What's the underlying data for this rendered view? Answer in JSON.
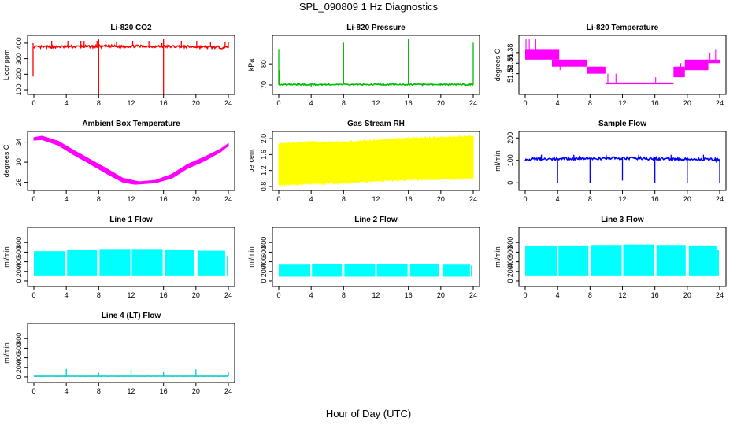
{
  "figure": {
    "title": "SPL_090809  1 Hz Diagnostics",
    "xlabel": "Hour of Day (UTC)"
  },
  "chart_data": [
    {
      "type": "line",
      "title": "Li-820 CO2",
      "ylabel": "Licor ppm",
      "color": "#ff0000",
      "xlim": [
        0,
        24
      ],
      "ylim": [
        90,
        430
      ],
      "xticks": [
        0,
        4,
        8,
        12,
        16,
        20,
        24
      ],
      "yticks": [
        100,
        200,
        300,
        400
      ],
      "baseline": [
        [
          0,
          375
        ],
        [
          6,
          378
        ],
        [
          12,
          380
        ],
        [
          18,
          378
        ],
        [
          24,
          372
        ]
      ],
      "noise": 8,
      "spikes": [
        [
          -0.1,
          185
        ],
        [
          -0.1,
          400
        ],
        [
          2.2,
          415
        ],
        [
          4.2,
          415
        ],
        [
          5.8,
          415
        ],
        [
          6.2,
          415
        ],
        [
          7.8,
          415
        ],
        [
          8,
          55
        ],
        [
          8,
          430
        ],
        [
          10.2,
          410
        ],
        [
          12.2,
          415
        ],
        [
          14.2,
          415
        ],
        [
          15.8,
          400
        ],
        [
          16,
          55
        ],
        [
          16,
          425
        ],
        [
          18.2,
          415
        ],
        [
          20.1,
          415
        ],
        [
          21.8,
          410
        ],
        [
          23.6,
          410
        ],
        [
          24,
          410
        ]
      ]
    },
    {
      "type": "line",
      "title": "Li-820 Pressure",
      "ylabel": "kPa",
      "color": "#00bb00",
      "xlim": [
        0,
        24
      ],
      "ylim": [
        67,
        92
      ],
      "xticks": [
        0,
        4,
        8,
        12,
        16,
        20,
        24
      ],
      "yticks": [
        70,
        80
      ],
      "baseline": [
        [
          0,
          70.2
        ],
        [
          24,
          70.2
        ]
      ],
      "noise": 0.3,
      "spikes": [
        [
          0,
          87
        ],
        [
          0.1,
          77
        ],
        [
          4,
          69
        ],
        [
          8,
          90
        ],
        [
          16,
          92
        ],
        [
          20,
          71
        ],
        [
          24,
          90
        ]
      ]
    },
    {
      "type": "step-band",
      "title": "Li-820 Temperature",
      "ylabel": "degrees C",
      "color": "#ff00ff",
      "xlim": [
        0,
        24
      ],
      "ylim": [
        51.27,
        51.42
      ],
      "xticks": [
        0,
        4,
        8,
        12,
        16,
        20,
        24
      ],
      "yticks": [
        51.32,
        51.35,
        51.38
      ],
      "ytick_labels": [
        "51.32",
        "51.35",
        "51.38"
      ],
      "bands": [
        [
          0,
          4.2,
          51.36,
          51.39
        ],
        [
          3.3,
          7.6,
          51.34,
          51.36
        ],
        [
          7.6,
          9.9,
          51.32,
          51.34
        ],
        [
          9.9,
          18.3,
          51.29,
          51.295
        ],
        [
          18.3,
          19.7,
          51.31,
          51.34
        ],
        [
          19.7,
          22.6,
          51.33,
          51.36
        ],
        [
          22.6,
          24,
          51.35,
          51.36
        ]
      ],
      "spikes": [
        [
          0.1,
          51.42
        ],
        [
          0.5,
          51.42
        ],
        [
          1.3,
          51.42
        ],
        [
          4.3,
          51.33
        ],
        [
          10.2,
          51.32
        ],
        [
          11.2,
          51.32
        ],
        [
          16.1,
          51.31
        ],
        [
          19.2,
          51.35
        ],
        [
          22.8,
          51.38
        ],
        [
          23.5,
          51.39
        ]
      ]
    },
    {
      "type": "band-line",
      "title": "Ambient Box Temperature",
      "ylabel": "degrees C",
      "color": "#ff00ff",
      "xlim": [
        0,
        24
      ],
      "ylim": [
        25,
        35.5
      ],
      "xticks": [
        0,
        4,
        8,
        12,
        16,
        20,
        24
      ],
      "yticks": [
        26,
        30,
        34
      ],
      "upper": [
        [
          0,
          34.9
        ],
        [
          1,
          35.2
        ],
        [
          3,
          34.2
        ],
        [
          5,
          32.3
        ],
        [
          7,
          30.5
        ],
        [
          9,
          28.7
        ],
        [
          11,
          26.8
        ],
        [
          13,
          26.1
        ],
        [
          15,
          26.4
        ],
        [
          17,
          27.6
        ],
        [
          19,
          29.6
        ],
        [
          21,
          31.0
        ],
        [
          23,
          32.6
        ],
        [
          24,
          33.7
        ]
      ],
      "lower": [
        [
          0,
          34.4
        ],
        [
          1,
          34.5
        ],
        [
          3,
          33.4
        ],
        [
          5,
          31.4
        ],
        [
          7,
          29.6
        ],
        [
          9,
          27.7
        ],
        [
          11,
          26.0
        ],
        [
          12.5,
          25.6
        ],
        [
          15,
          25.9
        ],
        [
          17,
          26.8
        ],
        [
          19,
          28.8
        ],
        [
          21,
          30.2
        ],
        [
          23,
          32.0
        ],
        [
          24,
          33.3
        ]
      ]
    },
    {
      "type": "band",
      "title": "Gas Stream RH",
      "ylabel": "percent",
      "color": "#ffff00",
      "xlim": [
        0,
        24
      ],
      "ylim": [
        0.78,
        2.1
      ],
      "xticks": [
        0,
        4,
        8,
        12,
        16,
        20,
        24
      ],
      "yticks": [
        0.8,
        1.2,
        1.6,
        2.0
      ],
      "ytick_labels": [
        "0.8",
        "1.2",
        "1.6",
        "2.0"
      ],
      "upper": [
        [
          0,
          1.86
        ],
        [
          4,
          1.9
        ],
        [
          8,
          1.9
        ],
        [
          12,
          1.95
        ],
        [
          16,
          2.0
        ],
        [
          20,
          2.02
        ],
        [
          24,
          2.05
        ]
      ],
      "lower": [
        [
          0,
          0.85
        ],
        [
          4,
          0.88
        ],
        [
          8,
          0.9
        ],
        [
          12,
          0.95
        ],
        [
          16,
          0.98
        ],
        [
          20,
          1.0
        ],
        [
          24,
          1.02
        ]
      ]
    },
    {
      "type": "line",
      "title": "Sample Flow",
      "ylabel": "ml/min",
      "color": "#0000ff",
      "xlim": [
        0,
        24
      ],
      "ylim": [
        -20,
        215
      ],
      "xticks": [
        0,
        4,
        8,
        12,
        16,
        20,
        24
      ],
      "yticks": [
        0,
        100,
        200
      ],
      "baseline": [
        [
          0,
          105
        ],
        [
          12,
          110
        ],
        [
          24,
          103
        ]
      ],
      "noise": 6,
      "spikes": [
        [
          4,
          0
        ],
        [
          8,
          0
        ],
        [
          12,
          10
        ],
        [
          16,
          0
        ],
        [
          20,
          0
        ],
        [
          24,
          0
        ],
        [
          2,
          125
        ],
        [
          6,
          125
        ],
        [
          10,
          125
        ],
        [
          14,
          125
        ],
        [
          18,
          125
        ],
        [
          22,
          125
        ]
      ]
    },
    {
      "type": "segments",
      "title": "Line 1 Flow",
      "ylabel": "ml/min",
      "color": "#00ffff",
      "xlim": [
        0,
        24
      ],
      "ylim": [
        -50,
        1050
      ],
      "xticks": [
        0,
        4,
        8,
        12,
        16,
        20,
        24
      ],
      "yticks": [
        0,
        200,
        400,
        600,
        800
      ],
      "bottom": 100,
      "segments": [
        [
          0,
          3.9,
          620
        ],
        [
          4.1,
          7.8,
          640
        ],
        [
          8.1,
          11.9,
          650
        ],
        [
          12.1,
          15.9,
          650
        ],
        [
          16.2,
          19.8,
          640
        ],
        [
          20.2,
          23.6,
          630
        ],
        [
          23.8,
          23.9,
          520
        ]
      ]
    },
    {
      "type": "segments",
      "title": "Line 2 Flow",
      "ylabel": "ml/min",
      "color": "#00ffff",
      "xlim": [
        0,
        24
      ],
      "ylim": [
        -50,
        1050
      ],
      "xticks": [
        0,
        4,
        8,
        12,
        16,
        20,
        24
      ],
      "yticks": [
        0,
        200,
        400,
        600,
        800
      ],
      "bottom": 90,
      "segments": [
        [
          0,
          3.9,
          340
        ],
        [
          4.1,
          7.8,
          345
        ],
        [
          8.1,
          11.9,
          355
        ],
        [
          12.1,
          15.9,
          355
        ],
        [
          16.2,
          19.8,
          350
        ],
        [
          20.2,
          23.6,
          340
        ],
        [
          23.7,
          23.9,
          320
        ]
      ]
    },
    {
      "type": "segments",
      "title": "Line 3 Flow",
      "ylabel": "ml/min",
      "color": "#00ffff",
      "xlim": [
        0,
        24
      ],
      "ylim": [
        -50,
        1050
      ],
      "xticks": [
        0,
        4,
        8,
        12,
        16,
        20,
        24
      ],
      "yticks": [
        0,
        200,
        400,
        600,
        800
      ],
      "bottom": 100,
      "segments": [
        [
          0,
          3.9,
          730
        ],
        [
          4.1,
          7.8,
          740
        ],
        [
          8.1,
          11.9,
          750
        ],
        [
          12.1,
          15.9,
          760
        ],
        [
          16.2,
          19.8,
          750
        ],
        [
          20.2,
          23.6,
          740
        ],
        [
          23.7,
          23.9,
          640
        ]
      ]
    },
    {
      "type": "line",
      "title": "Line 4 (LT) Flow",
      "ylabel": "ml/min",
      "color": "#00cccc",
      "xlim": [
        0,
        24
      ],
      "ylim": [
        -50,
        1050
      ],
      "xticks": [
        0,
        4,
        8,
        12,
        16,
        20,
        24
      ],
      "yticks": [
        0,
        200,
        400,
        600,
        800
      ],
      "baseline": [
        [
          0,
          15
        ],
        [
          24,
          15
        ]
      ],
      "noise": 2,
      "spikes": [
        [
          4,
          170
        ],
        [
          8,
          90
        ],
        [
          12,
          160
        ],
        [
          16,
          100
        ],
        [
          20,
          160
        ],
        [
          24,
          100
        ]
      ]
    }
  ]
}
